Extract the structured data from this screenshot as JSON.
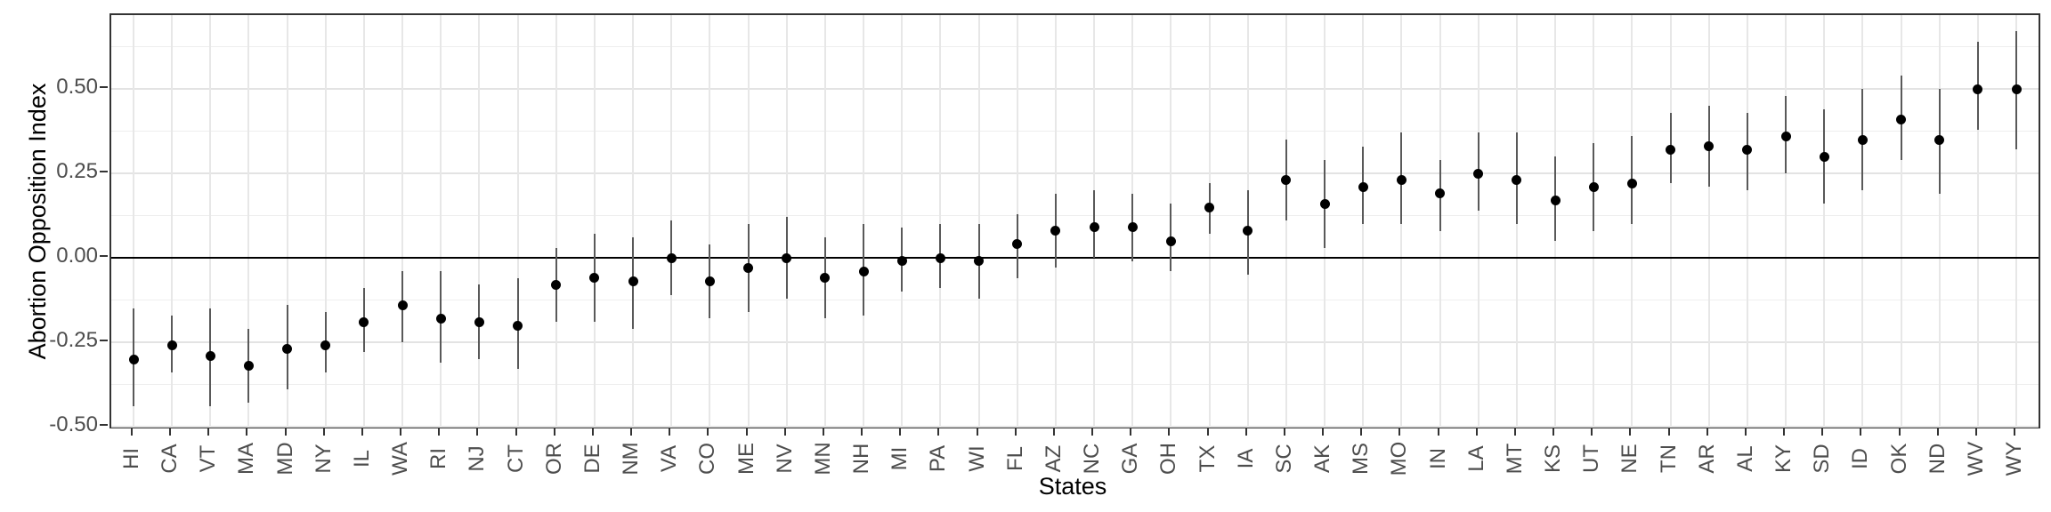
{
  "chart_data": {
    "type": "scatter",
    "title": "",
    "xlabel": "States",
    "ylabel": "Abortion Opposition Index",
    "ylim": [
      -0.505,
      0.718
    ],
    "yticks_major": [
      -0.5,
      -0.25,
      0.0,
      0.25,
      0.5
    ],
    "ytick_labels": [
      "-0.50",
      "-0.25",
      "0.00",
      "0.25",
      "0.50"
    ],
    "yticks_minor": [
      -0.375,
      -0.125,
      0.125,
      0.375,
      0.625
    ],
    "grid": "on",
    "legend": "none",
    "zero_line_y": 0.0,
    "marker": "filled-circle-with-ci-whisker",
    "points": [
      {
        "state": "HI",
        "value": -0.3,
        "ci_low": -0.44,
        "ci_high": -0.15
      },
      {
        "state": "CA",
        "value": -0.26,
        "ci_low": -0.34,
        "ci_high": -0.17
      },
      {
        "state": "VT",
        "value": -0.29,
        "ci_low": -0.44,
        "ci_high": -0.15
      },
      {
        "state": "MA",
        "value": -0.32,
        "ci_low": -0.43,
        "ci_high": -0.21
      },
      {
        "state": "MD",
        "value": -0.27,
        "ci_low": -0.39,
        "ci_high": -0.14
      },
      {
        "state": "NY",
        "value": -0.26,
        "ci_low": -0.34,
        "ci_high": -0.16
      },
      {
        "state": "IL",
        "value": -0.19,
        "ci_low": -0.28,
        "ci_high": -0.09
      },
      {
        "state": "WA",
        "value": -0.14,
        "ci_low": -0.25,
        "ci_high": -0.04
      },
      {
        "state": "RI",
        "value": -0.18,
        "ci_low": -0.31,
        "ci_high": -0.04
      },
      {
        "state": "NJ",
        "value": -0.19,
        "ci_low": -0.3,
        "ci_high": -0.08
      },
      {
        "state": "CT",
        "value": -0.2,
        "ci_low": -0.33,
        "ci_high": -0.06
      },
      {
        "state": "OR",
        "value": -0.08,
        "ci_low": -0.19,
        "ci_high": 0.03
      },
      {
        "state": "DE",
        "value": -0.06,
        "ci_low": -0.19,
        "ci_high": 0.07
      },
      {
        "state": "NM",
        "value": -0.07,
        "ci_low": -0.21,
        "ci_high": 0.06
      },
      {
        "state": "VA",
        "value": 0.0,
        "ci_low": -0.11,
        "ci_high": 0.11
      },
      {
        "state": "CO",
        "value": -0.07,
        "ci_low": -0.18,
        "ci_high": 0.04
      },
      {
        "state": "ME",
        "value": -0.03,
        "ci_low": -0.16,
        "ci_high": 0.1
      },
      {
        "state": "NV",
        "value": 0.0,
        "ci_low": -0.12,
        "ci_high": 0.12
      },
      {
        "state": "MN",
        "value": -0.06,
        "ci_low": -0.18,
        "ci_high": 0.06
      },
      {
        "state": "NH",
        "value": -0.04,
        "ci_low": -0.17,
        "ci_high": 0.1
      },
      {
        "state": "MI",
        "value": -0.01,
        "ci_low": -0.1,
        "ci_high": 0.09
      },
      {
        "state": "PA",
        "value": 0.0,
        "ci_low": -0.09,
        "ci_high": 0.1
      },
      {
        "state": "WI",
        "value": -0.01,
        "ci_low": -0.12,
        "ci_high": 0.1
      },
      {
        "state": "FL",
        "value": 0.04,
        "ci_low": -0.06,
        "ci_high": 0.13
      },
      {
        "state": "AZ",
        "value": 0.08,
        "ci_low": -0.03,
        "ci_high": 0.19
      },
      {
        "state": "NC",
        "value": 0.09,
        "ci_low": 0.0,
        "ci_high": 0.2
      },
      {
        "state": "GA",
        "value": 0.09,
        "ci_low": -0.01,
        "ci_high": 0.19
      },
      {
        "state": "OH",
        "value": 0.05,
        "ci_low": -0.04,
        "ci_high": 0.16
      },
      {
        "state": "TX",
        "value": 0.15,
        "ci_low": 0.07,
        "ci_high": 0.22
      },
      {
        "state": "IA",
        "value": 0.08,
        "ci_low": -0.05,
        "ci_high": 0.2
      },
      {
        "state": "SC",
        "value": 0.23,
        "ci_low": 0.11,
        "ci_high": 0.35
      },
      {
        "state": "AK",
        "value": 0.16,
        "ci_low": 0.03,
        "ci_high": 0.29
      },
      {
        "state": "MS",
        "value": 0.21,
        "ci_low": 0.1,
        "ci_high": 0.33
      },
      {
        "state": "MO",
        "value": 0.23,
        "ci_low": 0.1,
        "ci_high": 0.37
      },
      {
        "state": "IN",
        "value": 0.19,
        "ci_low": 0.08,
        "ci_high": 0.29
      },
      {
        "state": "LA",
        "value": 0.25,
        "ci_low": 0.14,
        "ci_high": 0.37
      },
      {
        "state": "MT",
        "value": 0.23,
        "ci_low": 0.1,
        "ci_high": 0.37
      },
      {
        "state": "KS",
        "value": 0.17,
        "ci_low": 0.05,
        "ci_high": 0.3
      },
      {
        "state": "UT",
        "value": 0.21,
        "ci_low": 0.08,
        "ci_high": 0.34
      },
      {
        "state": "NE",
        "value": 0.22,
        "ci_low": 0.1,
        "ci_high": 0.36
      },
      {
        "state": "TN",
        "value": 0.32,
        "ci_low": 0.22,
        "ci_high": 0.43
      },
      {
        "state": "AR",
        "value": 0.33,
        "ci_low": 0.21,
        "ci_high": 0.45
      },
      {
        "state": "AL",
        "value": 0.32,
        "ci_low": 0.2,
        "ci_high": 0.43
      },
      {
        "state": "KY",
        "value": 0.36,
        "ci_low": 0.25,
        "ci_high": 0.48
      },
      {
        "state": "SD",
        "value": 0.3,
        "ci_low": 0.16,
        "ci_high": 0.44
      },
      {
        "state": "ID",
        "value": 0.35,
        "ci_low": 0.2,
        "ci_high": 0.5
      },
      {
        "state": "OK",
        "value": 0.41,
        "ci_low": 0.29,
        "ci_high": 0.54
      },
      {
        "state": "ND",
        "value": 0.35,
        "ci_low": 0.19,
        "ci_high": 0.5
      },
      {
        "state": "WV",
        "value": 0.5,
        "ci_low": 0.38,
        "ci_high": 0.64
      },
      {
        "state": "WY",
        "value": 0.5,
        "ci_low": 0.32,
        "ci_high": 0.67
      }
    ]
  },
  "colors": {
    "background": "#ffffff",
    "panel_border": "#333333",
    "grid_major": "#e3e3e3",
    "grid_minor": "#eeeeee",
    "zero_line": "#000000",
    "error_bar": "#595959",
    "point": "#000000",
    "tick_label": "#4d4d4d",
    "axis_title": "#000000"
  }
}
